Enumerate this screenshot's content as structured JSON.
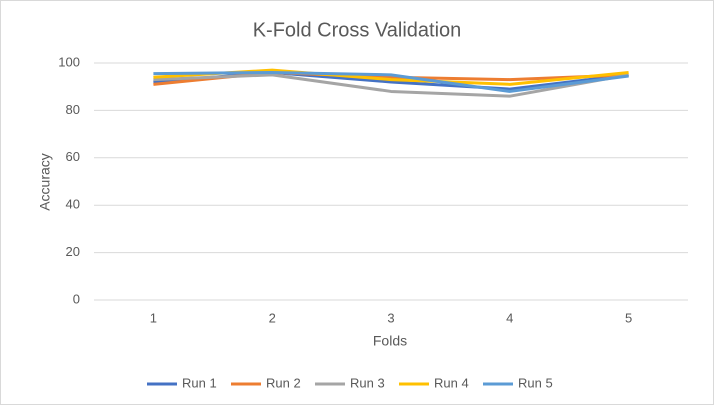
{
  "chart_data": {
    "type": "line",
    "title": "K-Fold Cross Validation",
    "x_label": "Folds",
    "y_label": "Accuracy",
    "categories": [
      "1",
      "2",
      "3",
      "4",
      "5"
    ],
    "series": [
      {
        "name": "Run 1",
        "color": "#4472c4",
        "values": [
          92,
          96,
          92,
          89,
          95
        ]
      },
      {
        "name": "Run 2",
        "color": "#ed7d31",
        "values": [
          91,
          96,
          94,
          93,
          95
        ]
      },
      {
        "name": "Run 3",
        "color": "#a5a5a5",
        "values": [
          93,
          95,
          88,
          86,
          95
        ]
      },
      {
        "name": "Run 4",
        "color": "#ffc000",
        "values": [
          94,
          97,
          93,
          91,
          96
        ]
      },
      {
        "name": "Run 5",
        "color": "#5b9bd5",
        "values": [
          95.5,
          96,
          95,
          88,
          94.5
        ]
      }
    ],
    "ylim": [
      0,
      100
    ],
    "yticks": [
      0,
      20,
      40,
      60,
      80,
      100
    ],
    "grid": true,
    "legend": "bottom"
  }
}
